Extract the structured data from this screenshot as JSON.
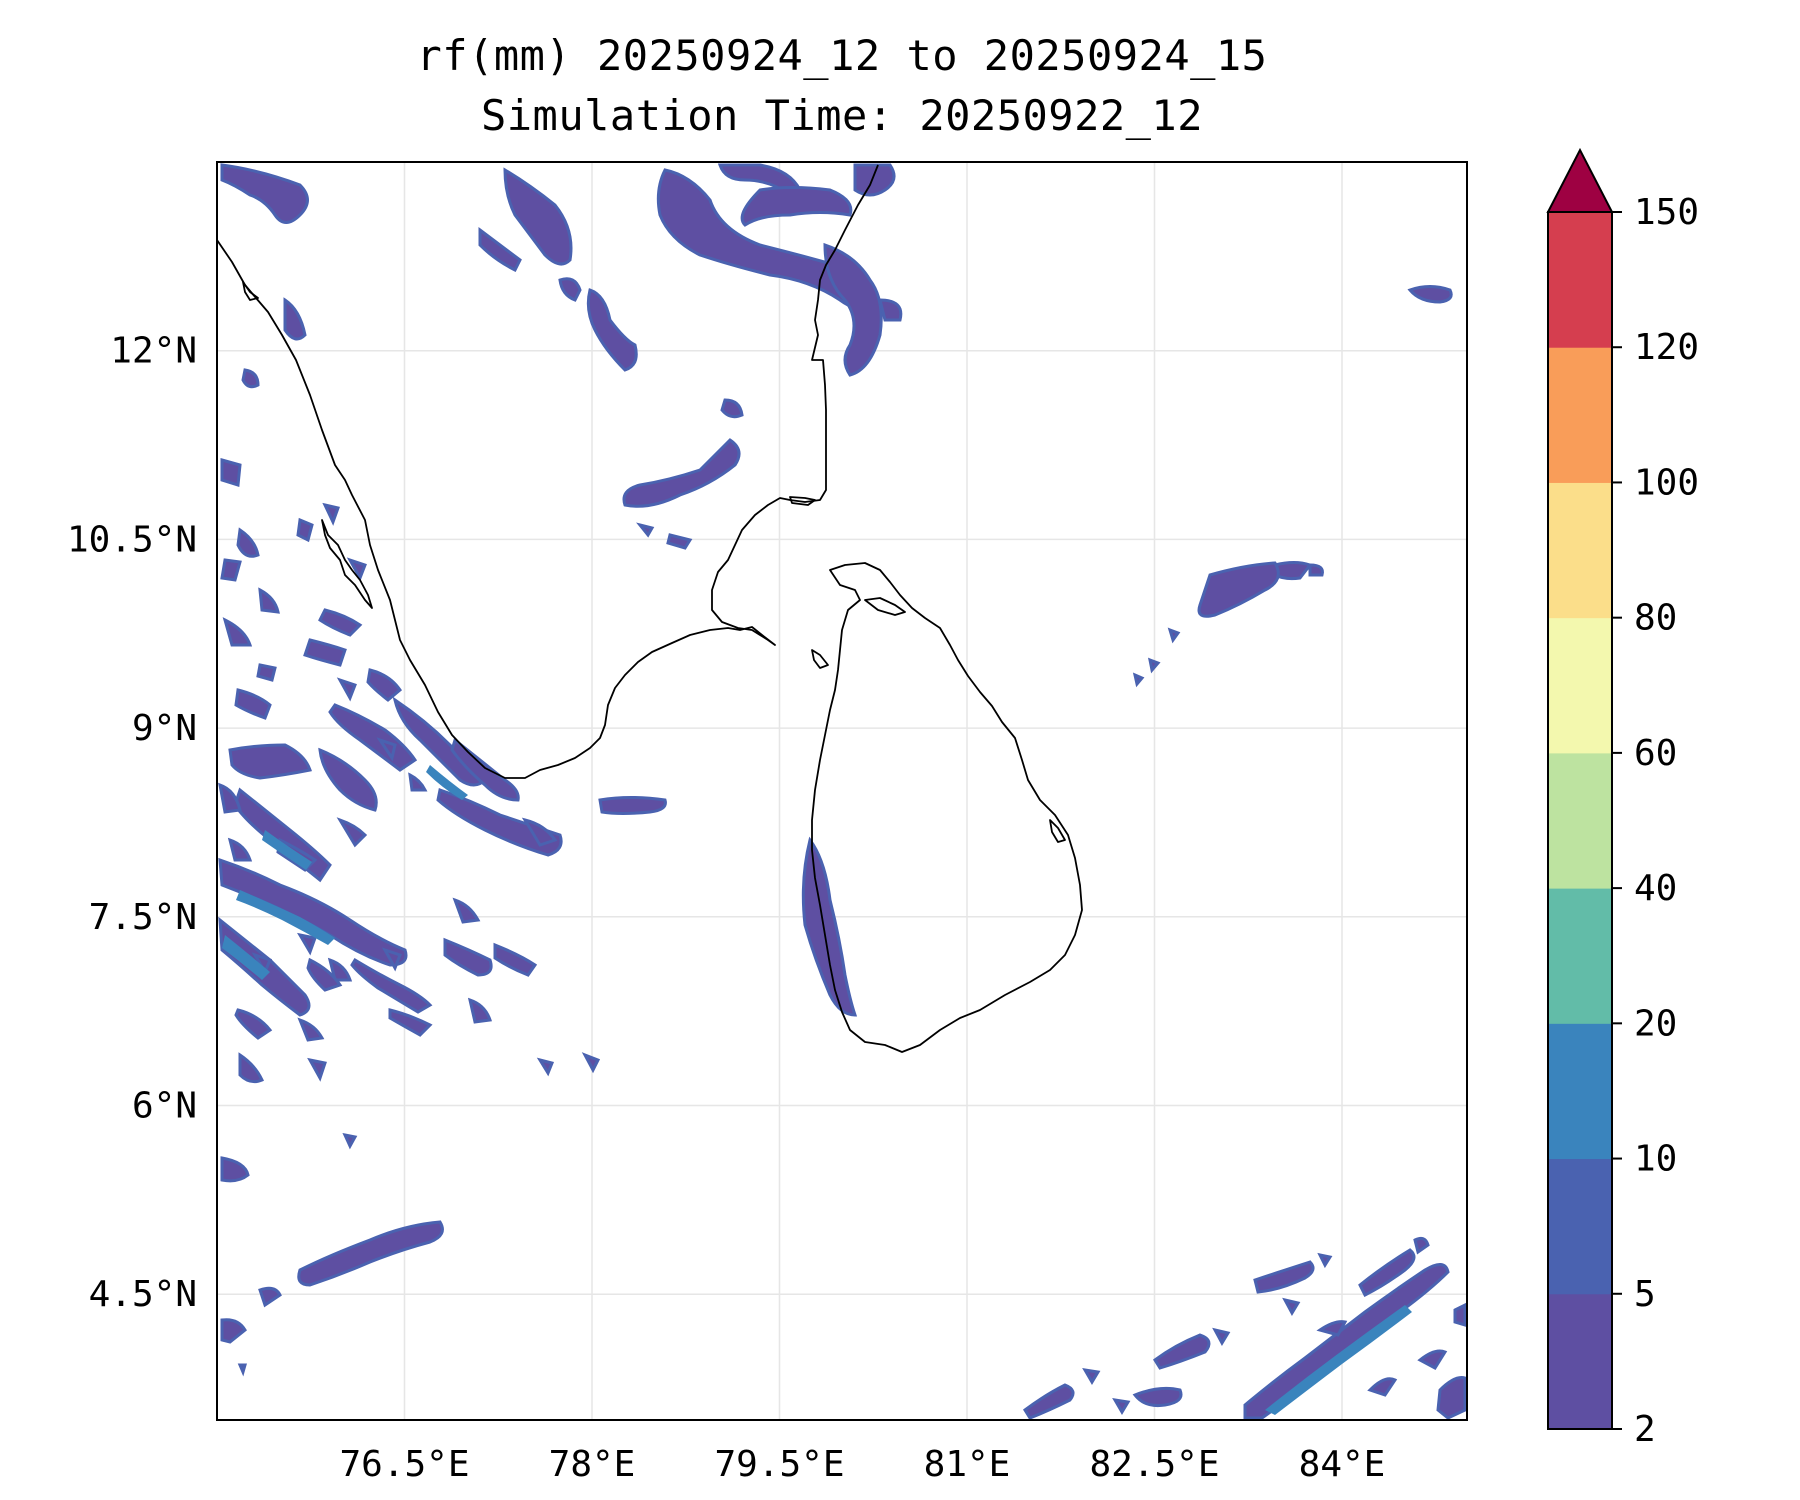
{
  "title": {
    "line1": "rf(mm) 20250924_12 to 20250924_15",
    "line2": "Simulation Time: 20250922_12"
  },
  "map": {
    "variable": "rf(mm)",
    "projection": "PlateCarree",
    "lon_range": [
      75.0,
      85.0
    ],
    "lat_range": [
      3.5,
      13.5
    ],
    "lon_ticks": [
      {
        "value": 76.5,
        "label": "76.5°E"
      },
      {
        "value": 78.0,
        "label": "78°E"
      },
      {
        "value": 79.5,
        "label": "79.5°E"
      },
      {
        "value": 81.0,
        "label": "81°E"
      },
      {
        "value": 82.5,
        "label": "82.5°E"
      },
      {
        "value": 84.0,
        "label": "84°E"
      }
    ],
    "lat_ticks": [
      {
        "value": 12.0,
        "label": "12°N"
      },
      {
        "value": 10.5,
        "label": "10.5°N"
      },
      {
        "value": 9.0,
        "label": "9°N"
      },
      {
        "value": 7.5,
        "label": "7.5°N"
      },
      {
        "value": 6.0,
        "label": "6°N"
      },
      {
        "value": 4.5,
        "label": "4.5°N"
      }
    ],
    "colors": {
      "frame": "#000000",
      "grid": "#e6e6e6",
      "coast": "#000000",
      "rain_light": "#5e4fa2",
      "rain_mid": "#4a62b0",
      "rain_heavy": "#3a84bd"
    }
  },
  "colorbar": {
    "levels": [
      2,
      5,
      10,
      20,
      40,
      60,
      80,
      100,
      120,
      150
    ],
    "labels": [
      "2",
      "5",
      "10",
      "20",
      "40",
      "60",
      "80",
      "100",
      "120",
      "150"
    ],
    "colors": [
      "#5e4fa2",
      "#4a62b0",
      "#3a84bd",
      "#62bca8",
      "#bde3a0",
      "#f3f8ae",
      "#fbde8a",
      "#f99d59",
      "#d53e4f"
    ],
    "extend_color": "#9e0142"
  }
}
